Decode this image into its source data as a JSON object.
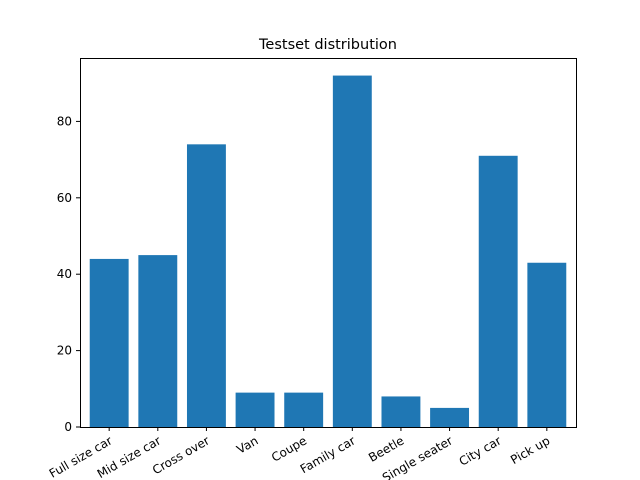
{
  "chart_data": {
    "type": "bar",
    "title": "Testset distribution",
    "xlabel": "",
    "ylabel": "",
    "categories": [
      "Full size car",
      "Mid size car",
      "Cross over",
      "Van",
      "Coupe",
      "Family car",
      "Beetle",
      "Single seater",
      "City car",
      "Pick up"
    ],
    "values": [
      44,
      45,
      74,
      9,
      9,
      92,
      8,
      5,
      71,
      43
    ],
    "ylim": [
      0,
      96.6
    ],
    "yticks": [
      0,
      20,
      40,
      60,
      80
    ],
    "bar_color": "#1f77b4",
    "grid": false,
    "legend": "none",
    "xtick_rotation_deg": 30
  }
}
